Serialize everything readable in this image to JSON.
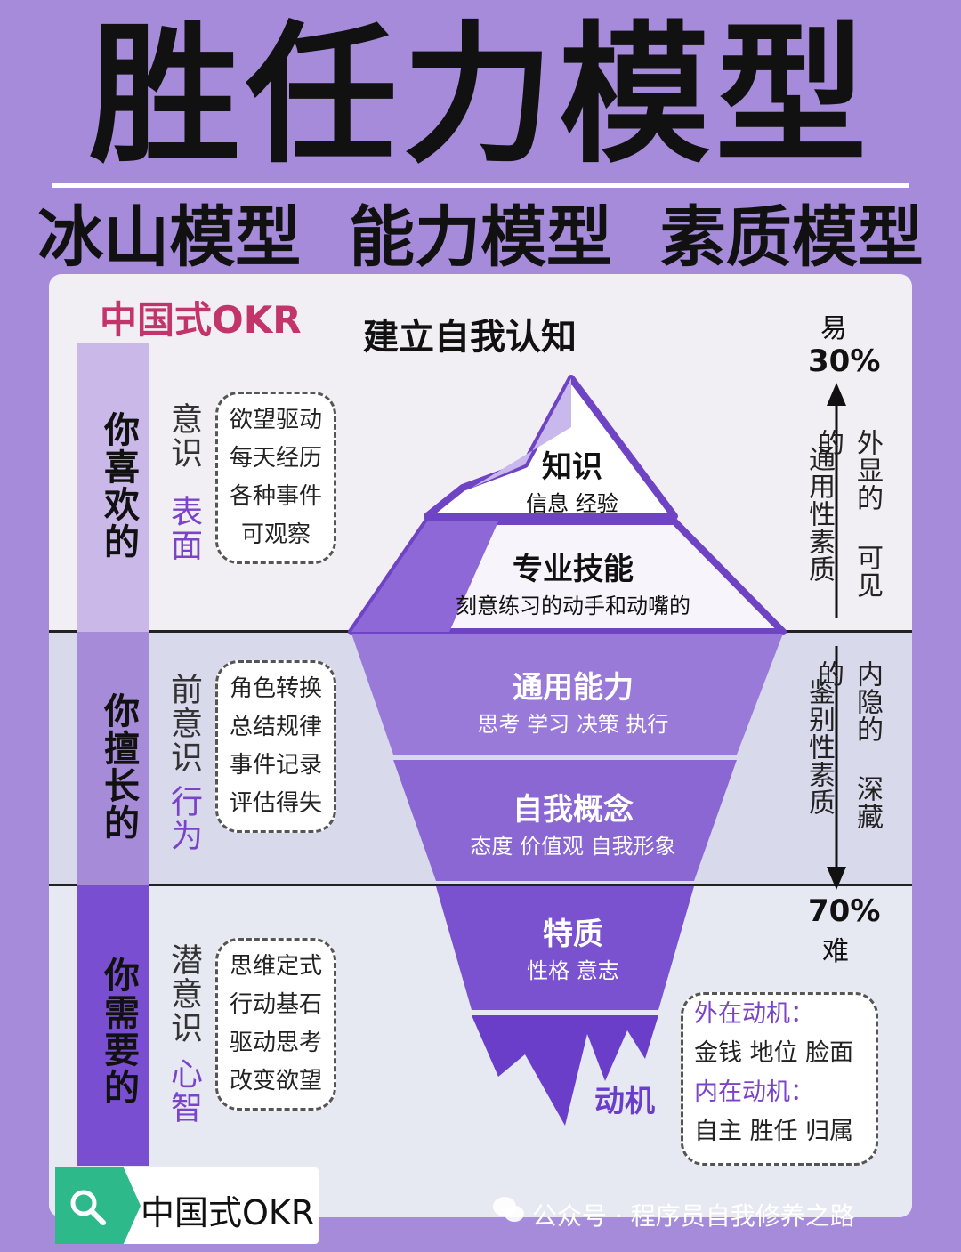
{
  "title": "胜任力模型",
  "subtitles": [
    "冰山模型",
    "能力模型",
    "素质模型"
  ],
  "brand_top": "中国式OKR",
  "center_heading": "建立自我认知",
  "left_column": [
    {
      "label": "你喜欢的",
      "side_top": "意识",
      "side_bottom": "表面",
      "items": [
        "欲望驱动",
        "每天经历",
        "各种事件",
        "可观察"
      ]
    },
    {
      "label": "你擅长的",
      "side_top": "前意识",
      "side_bottom": "行为",
      "items": [
        "角色转换",
        "总结规律",
        "事件记录",
        "评估得失"
      ]
    },
    {
      "label": "你需要的",
      "side_top": "潜意识",
      "side_bottom": "心智",
      "items": [
        "思维定式",
        "行动基石",
        "驱动思考",
        "改变欲望"
      ]
    }
  ],
  "iceberg": [
    {
      "title": "知识",
      "sub": "信息 经验"
    },
    {
      "title": "专业技能",
      "sub": "刻意练习的动手和动嘴的"
    },
    {
      "title": "通用能力",
      "sub": "思考 学习 决策 执行"
    },
    {
      "title": "自我概念",
      "sub": "态度 价值观 自我形象"
    },
    {
      "title": "特质",
      "sub": "性格 意志"
    },
    {
      "title": "动机",
      "sub": ""
    }
  ],
  "right_column": {
    "top_word": "易",
    "top_pct": "30%",
    "upper_label_a": "通用性素质",
    "upper_label_b": "外显的 可见的",
    "lower_label_a": "鉴别性素质",
    "lower_label_b": "内隐的 深藏的",
    "bottom_pct": "70%",
    "bottom_word": "难"
  },
  "motive_box": {
    "extrinsic_label": "外在动机：",
    "extrinsic_items": "金钱 地位 脸面",
    "intrinsic_label": "内在动机：",
    "intrinsic_items": "自主 胜任 归属"
  },
  "search_badge": {
    "text": "中国式OKR",
    "icon": "search-icon"
  },
  "watermark": "公众号 · 程序员自我修养之路",
  "colors": {
    "background": "#a58bd9",
    "accent_pink": "#c2356b",
    "accent_purple": "#7a43c8",
    "search_green": "#2db98a"
  }
}
